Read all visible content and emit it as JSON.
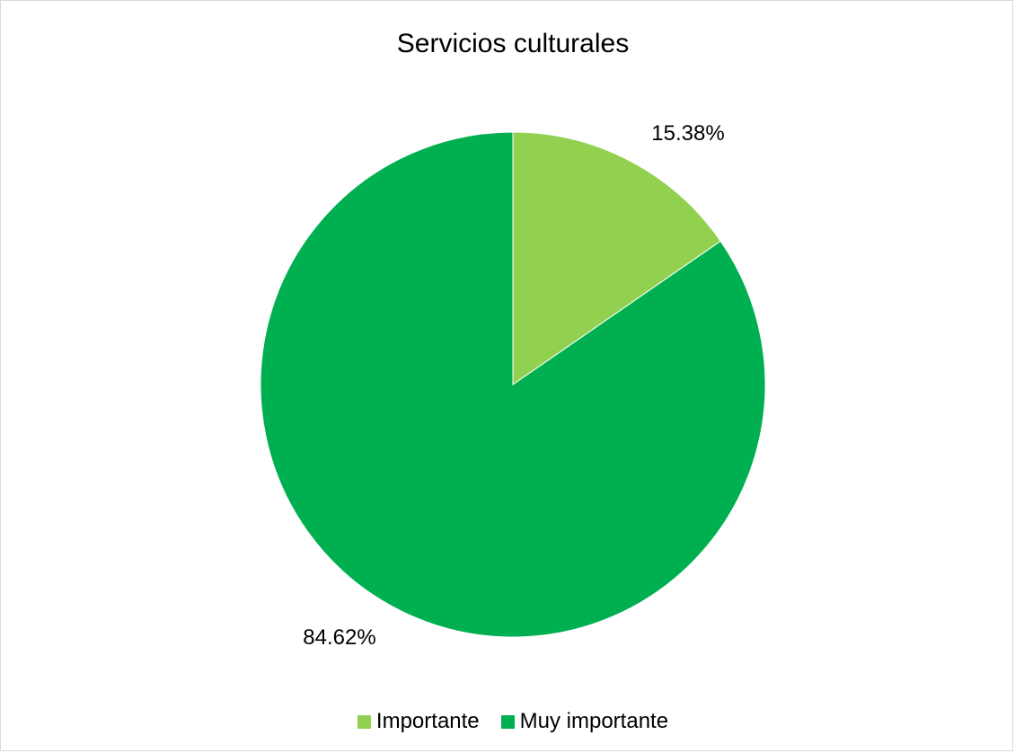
{
  "chart_data": {
    "type": "pie",
    "title": "Servicios culturales",
    "categories": [
      "Importante",
      "Muy importante"
    ],
    "values": [
      15.38,
      84.62
    ],
    "data_labels": [
      "15.38%",
      "84.62%"
    ],
    "colors": [
      "#92d050",
      "#00b050"
    ],
    "legend_position": "bottom",
    "start_angle": "12 o'clock, clockwise"
  }
}
